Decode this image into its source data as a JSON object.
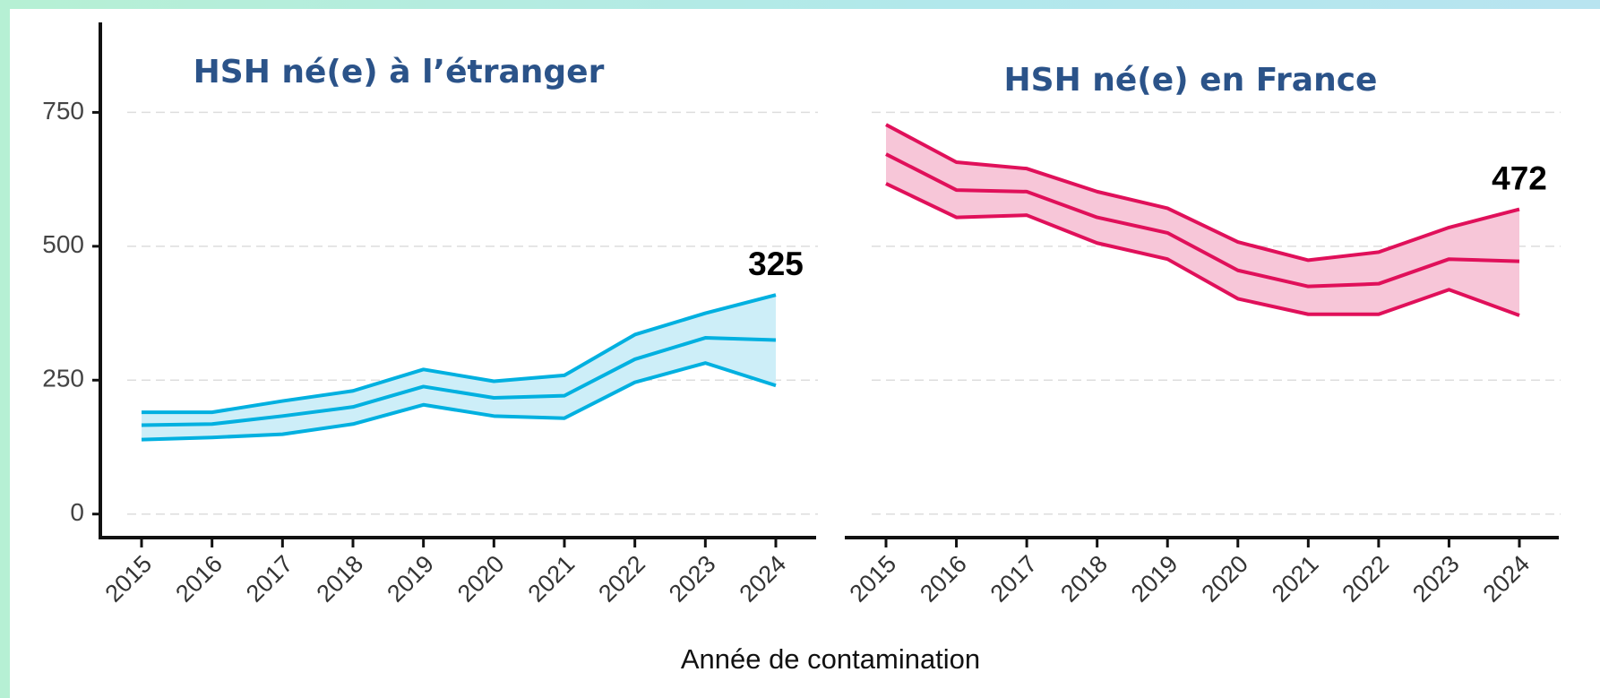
{
  "xlabel": "Année de contamination",
  "chart_data": [
    {
      "type": "band-line",
      "title": "HSH né(e) à l’étranger",
      "categories": [
        "2015",
        "2016",
        "2017",
        "2018",
        "2019",
        "2020",
        "2021",
        "2022",
        "2023",
        "2024"
      ],
      "series": [
        {
          "color": "#00b0e0",
          "band_color": "#cdeef8",
          "values": [
            166,
            168,
            183,
            200,
            238,
            217,
            221,
            289,
            329,
            325
          ],
          "lower": [
            139,
            143,
            149,
            168,
            204,
            183,
            179,
            246,
            282,
            240
          ],
          "upper": [
            190,
            190,
            211,
            230,
            270,
            248,
            259,
            335,
            375,
            409
          ],
          "value_labels": [
            null,
            null,
            null,
            null,
            null,
            null,
            null,
            null,
            null,
            "325"
          ]
        }
      ],
      "ylim": [
        -44,
        918
      ],
      "yticks": [
        0,
        250,
        500,
        750
      ],
      "grid": true,
      "y_axis": true
    },
    {
      "type": "band-line",
      "title": "HSH né(e) en France",
      "categories": [
        "2015",
        "2016",
        "2017",
        "2018",
        "2019",
        "2020",
        "2021",
        "2022",
        "2023",
        "2024"
      ],
      "series": [
        {
          "color": "#e0105a",
          "band_color": "#f7c6d8",
          "values": [
            672,
            605,
            602,
            554,
            525,
            455,
            425,
            430,
            476,
            472
          ],
          "lower": [
            617,
            554,
            558,
            506,
            476,
            402,
            373,
            373,
            419,
            371
          ],
          "upper": [
            727,
            657,
            645,
            602,
            571,
            508,
            474,
            489,
            535,
            569
          ],
          "value_labels": [
            null,
            null,
            null,
            null,
            null,
            null,
            null,
            null,
            null,
            "472"
          ]
        }
      ],
      "ylim": [
        -44,
        918
      ],
      "yticks": [
        0,
        250,
        500,
        750
      ],
      "grid": true,
      "y_axis": false
    }
  ]
}
